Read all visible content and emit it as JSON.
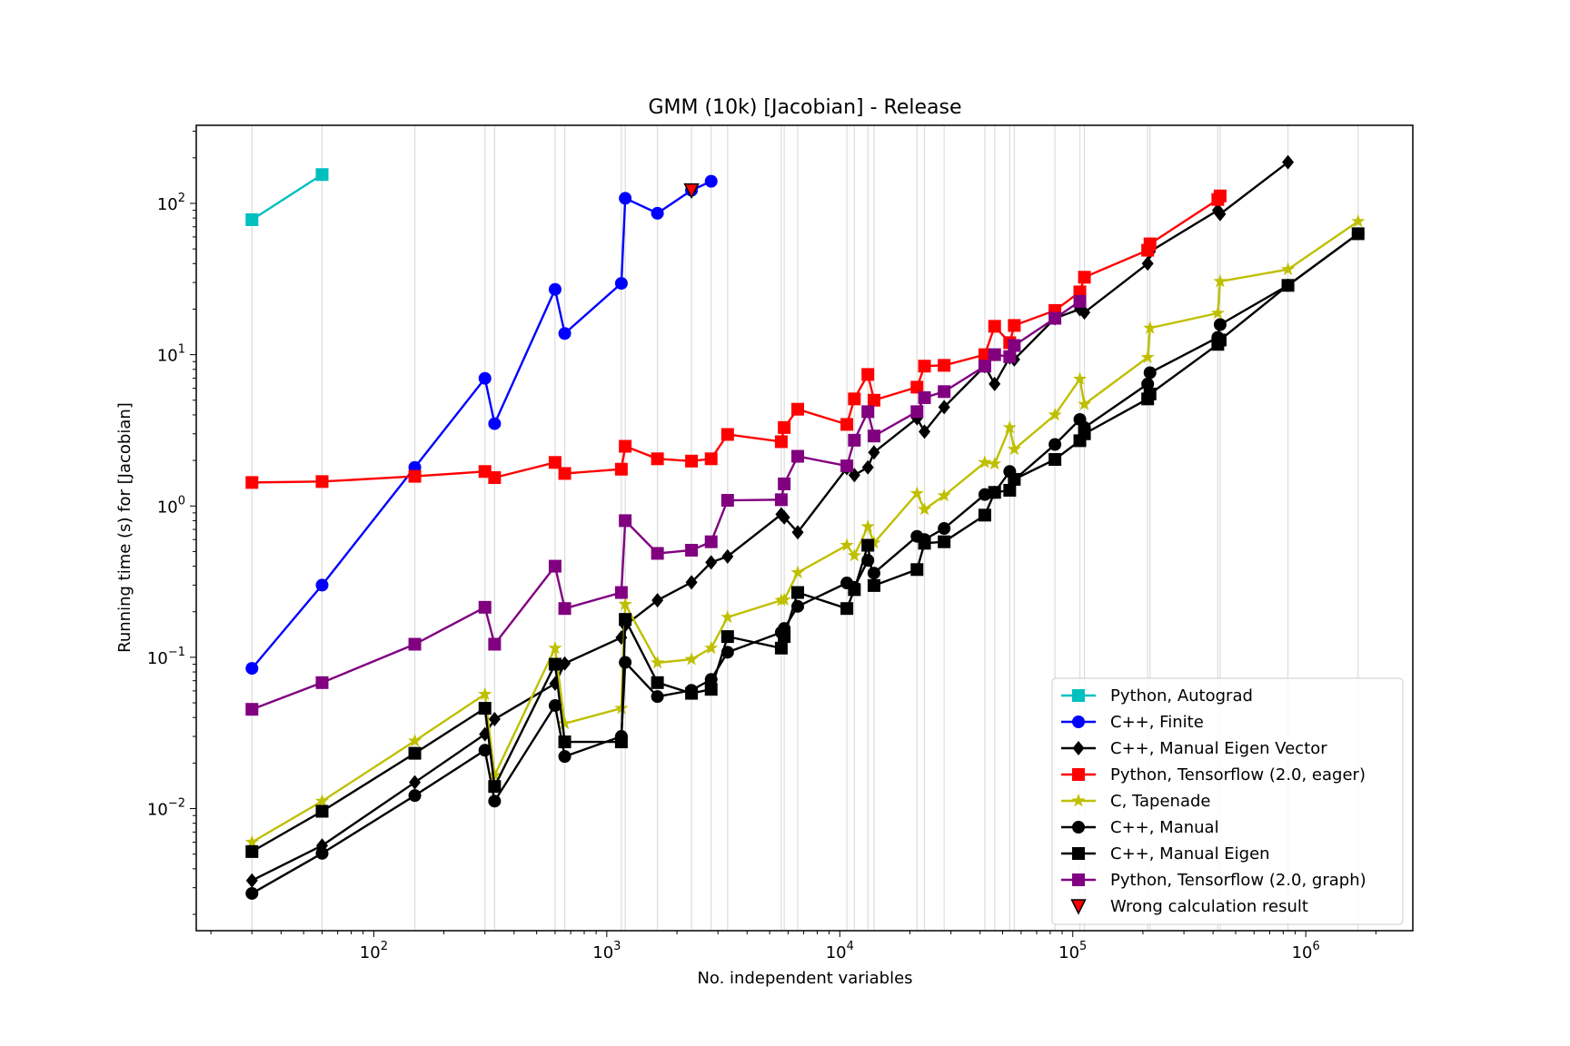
{
  "chart_data": {
    "type": "line",
    "title": "GMM (10k) [Jacobian] - Release",
    "xlabel": "No. independent variables",
    "ylabel": "Running time (s) for [Jacobian]",
    "xscale": "log",
    "yscale": "log",
    "xlim": [
      17.3,
      2880000
    ],
    "ylim": [
      0.00156,
      328
    ],
    "x_ticks": [
      {
        "value": 100,
        "base": "10",
        "exp": "2"
      },
      {
        "value": 1000,
        "base": "10",
        "exp": "3"
      },
      {
        "value": 10000,
        "base": "10",
        "exp": "4"
      },
      {
        "value": 100000,
        "base": "10",
        "exp": "5"
      },
      {
        "value": 1000000,
        "base": "10",
        "exp": "6"
      }
    ],
    "y_ticks": [
      {
        "value": 0.01,
        "base": "10",
        "exp": "−2"
      },
      {
        "value": 0.1,
        "base": "10",
        "exp": "−1"
      },
      {
        "value": 1,
        "base": "10",
        "exp": "0"
      },
      {
        "value": 10,
        "base": "10",
        "exp": "1"
      },
      {
        "value": 100,
        "base": "10",
        "exp": "2"
      }
    ],
    "grid": "vertical lines at each x value",
    "legend_position": "lower-right",
    "x": [
      30,
      60,
      150,
      300,
      330,
      600,
      660,
      1155,
      1200,
      1650,
      2310,
      2805,
      3300,
      5610,
      5775,
      6600,
      10725,
      11550,
      13200,
      14025,
      21450,
      23100,
      28050,
      41925,
      46200,
      53625,
      56100,
      83850,
      107250,
      112200,
      209625,
      214500,
      419250,
      429000,
      838500,
      1677000
    ],
    "series": [
      {
        "name": "Python, Autograd",
        "color": "#17becf",
        "colorHex": "#00bfbf",
        "marker": "square",
        "values": [
          78,
          155,
          null,
          null,
          null,
          null,
          null,
          null,
          null,
          null,
          null,
          null,
          null,
          null,
          null,
          null,
          null,
          null,
          null,
          null,
          null,
          null,
          null,
          null,
          null,
          null,
          null,
          null,
          null,
          null,
          null,
          null,
          null,
          null,
          null,
          null
        ]
      },
      {
        "name": "C++, Finite",
        "color": "#0000ff",
        "marker": "circle",
        "values": [
          0.0845,
          0.3,
          1.8,
          6.97,
          3.5,
          27,
          13.8,
          29.6,
          108,
          86,
          122,
          140,
          null,
          null,
          null,
          null,
          null,
          null,
          null,
          null,
          null,
          null,
          null,
          null,
          null,
          null,
          null,
          null,
          null,
          null,
          null,
          null,
          null,
          null,
          null,
          null
        ]
      },
      {
        "name": "C++, Manual Eigen Vector",
        "color": "#000000",
        "marker": "diamond",
        "values": [
          0.00335,
          0.0057,
          0.0149,
          0.031,
          0.039,
          0.067,
          0.091,
          0.135,
          0.163,
          0.238,
          0.313,
          0.424,
          0.464,
          0.88,
          0.84,
          0.67,
          1.78,
          1.6,
          1.8,
          2.26,
          3.8,
          3.1,
          4.5,
          8.4,
          6.4,
          9.6,
          9.3,
          17.4,
          20,
          19,
          40,
          48,
          90,
          85,
          187,
          null
        ]
      },
      {
        "name": "Python, Tensorflow (2.0, eager)",
        "color": "#ff0000",
        "marker": "square",
        "values": [
          1.43,
          1.45,
          1.57,
          1.69,
          1.54,
          1.94,
          1.64,
          1.75,
          2.48,
          2.05,
          1.98,
          2.05,
          2.97,
          2.66,
          3.3,
          4.36,
          3.46,
          5.1,
          7.4,
          5.0,
          6.1,
          8.4,
          8.5,
          10,
          15.4,
          12,
          15.6,
          19.6,
          26,
          32.5,
          49,
          54,
          106,
          112,
          null,
          null
        ]
      },
      {
        "name": "C, Tapenade",
        "color": "#bfbf00",
        "marker": "star",
        "values": [
          0.006,
          0.0112,
          0.028,
          0.057,
          0.0166,
          0.115,
          0.0365,
          0.046,
          0.224,
          0.092,
          0.097,
          0.115,
          0.184,
          0.238,
          0.24,
          0.363,
          0.55,
          0.47,
          0.73,
          0.57,
          1.21,
          0.95,
          1.17,
          1.94,
          1.9,
          3.3,
          2.37,
          4.0,
          6.9,
          4.7,
          9.6,
          15,
          18.8,
          30.5,
          36.6,
          76
        ]
      },
      {
        "name": "C++, Manual",
        "color": "#000000",
        "marker": "circle",
        "values": [
          0.00275,
          0.00506,
          0.0122,
          0.0243,
          0.0112,
          0.048,
          0.0221,
          0.03,
          0.0925,
          0.055,
          0.0605,
          0.0714,
          0.108,
          0.146,
          0.155,
          0.217,
          0.31,
          0.29,
          0.437,
          0.36,
          0.63,
          0.6,
          0.71,
          1.19,
          1.23,
          1.69,
          1.49,
          2.55,
          3.73,
          3.3,
          6.4,
          7.6,
          13,
          15.8,
          28.7,
          63
        ]
      },
      {
        "name": "C++, Manual Eigen",
        "color": "#000000",
        "marker": "square",
        "values": [
          0.0052,
          0.0096,
          0.0232,
          0.046,
          0.014,
          0.09,
          0.0276,
          0.0276,
          0.178,
          0.068,
          0.0578,
          0.0614,
          0.137,
          0.115,
          0.137,
          0.268,
          0.21,
          0.28,
          0.55,
          0.298,
          0.38,
          0.567,
          0.58,
          0.87,
          1.23,
          1.27,
          1.5,
          2.03,
          2.7,
          3.0,
          5.1,
          5.5,
          11.7,
          12.5,
          28.7,
          63
        ]
      },
      {
        "name": "Python, Tensorflow (2.0, graph)",
        "color": "#800080",
        "marker": "square",
        "values": [
          0.0453,
          0.068,
          0.122,
          0.214,
          0.122,
          0.4,
          0.21,
          0.268,
          0.8,
          0.486,
          0.51,
          0.58,
          1.09,
          1.1,
          1.4,
          2.13,
          1.84,
          2.72,
          4.2,
          2.9,
          4.2,
          5.2,
          5.7,
          8.4,
          10,
          9.7,
          11.5,
          17.4,
          22.5,
          null,
          null,
          null,
          null,
          null,
          null,
          null
        ]
      }
    ],
    "annotations": [
      {
        "name": "Wrong calculation result",
        "marker": "triangle-down",
        "color": "#ff0000",
        "x": 2310,
        "y": 122
      }
    ]
  }
}
